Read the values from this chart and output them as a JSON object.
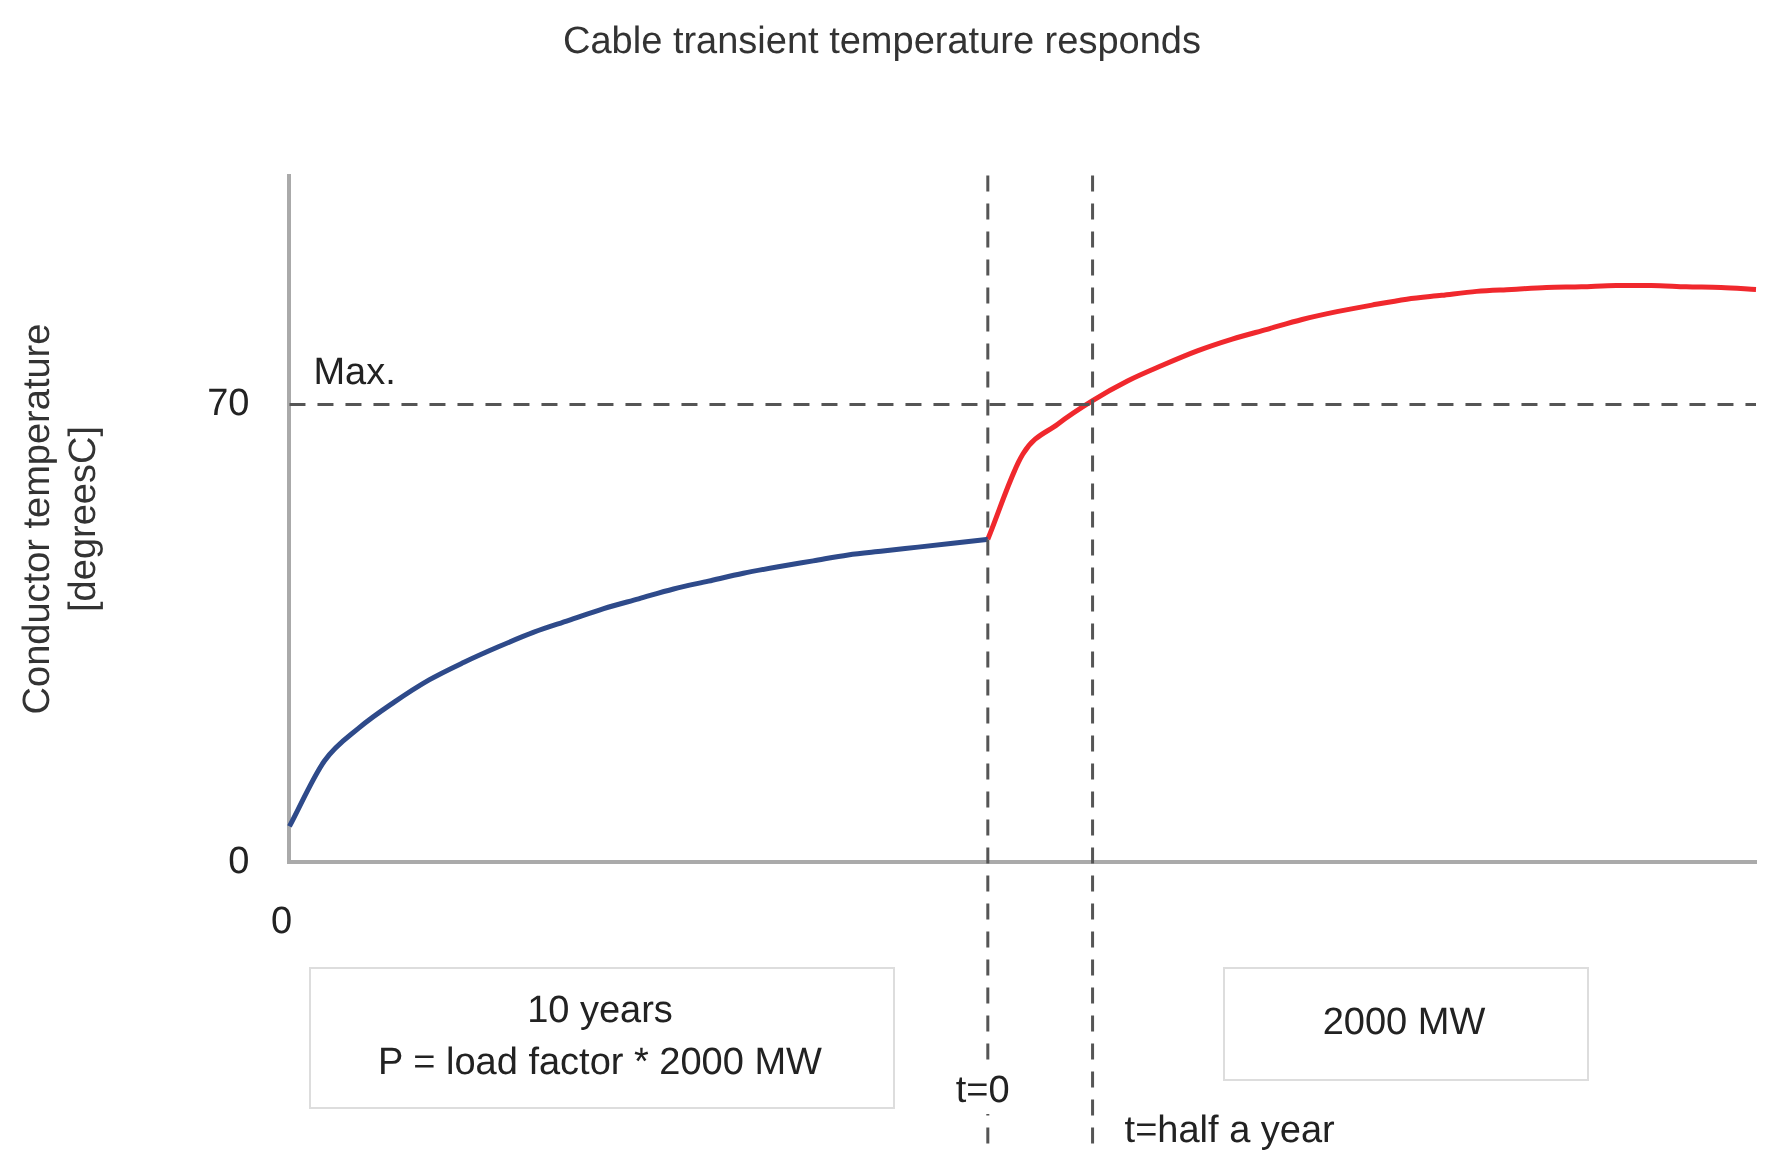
{
  "chart_data": {
    "type": "line",
    "title": "Cable transient temperature responds",
    "ylabel": "Conductor temperature\n[degreesC]",
    "categories": [
      null,
      null,
      null,
      null,
      null,
      null,
      null,
      null,
      null,
      null,
      null,
      null,
      null,
      null,
      null,
      null,
      null,
      null,
      null,
      null,
      null,
      null,
      null,
      null,
      null,
      null,
      null,
      null,
      null,
      null,
      null,
      null,
      null,
      null,
      null,
      null,
      null,
      null,
      null,
      null,
      null,
      null,
      null
    ],
    "series": [
      {
        "color": "#2e4a8a",
        "values": [
          5.5,
          15.5,
          20.6,
          24.5,
          27.9,
          30.6,
          33,
          35.2,
          37,
          38.8,
          40.3,
          41.8,
          43,
          44.2,
          45.2,
          46.1,
          47,
          47.6,
          48.2,
          48.8,
          49.4,
          null,
          null,
          null,
          null,
          null,
          null,
          null,
          null,
          null,
          null,
          null,
          null,
          null,
          null,
          null,
          null,
          null,
          null,
          null,
          null,
          null,
          null
        ]
      },
      {
        "color": "#f0282d",
        "values": [
          null,
          null,
          null,
          null,
          null,
          null,
          null,
          null,
          null,
          null,
          null,
          null,
          null,
          null,
          null,
          null,
          null,
          null,
          null,
          null,
          49.4,
          62.4,
          67,
          70.6,
          73.6,
          76,
          78.2,
          80,
          81.5,
          83,
          84.2,
          85.2,
          86.1,
          86.7,
          87.3,
          87.6,
          87.9,
          88,
          88.2,
          88.2,
          88,
          87.9,
          87.6
        ]
      }
    ],
    "ylim": [
      0,
      105
    ],
    "yticks": [
      0,
      70
    ],
    "grid": false,
    "legend": false,
    "marker": "none",
    "line_style": "solid",
    "ref_lines": [
      {
        "axis": "y",
        "value": 70,
        "label": "Max.",
        "color": "#555555",
        "line_style": "dashed"
      }
    ],
    "annotations": [
      "0",
      "10 years\nP = load factor * 2000 MW",
      "2000 MW",
      "t=0",
      "t=half a year"
    ]
  }
}
